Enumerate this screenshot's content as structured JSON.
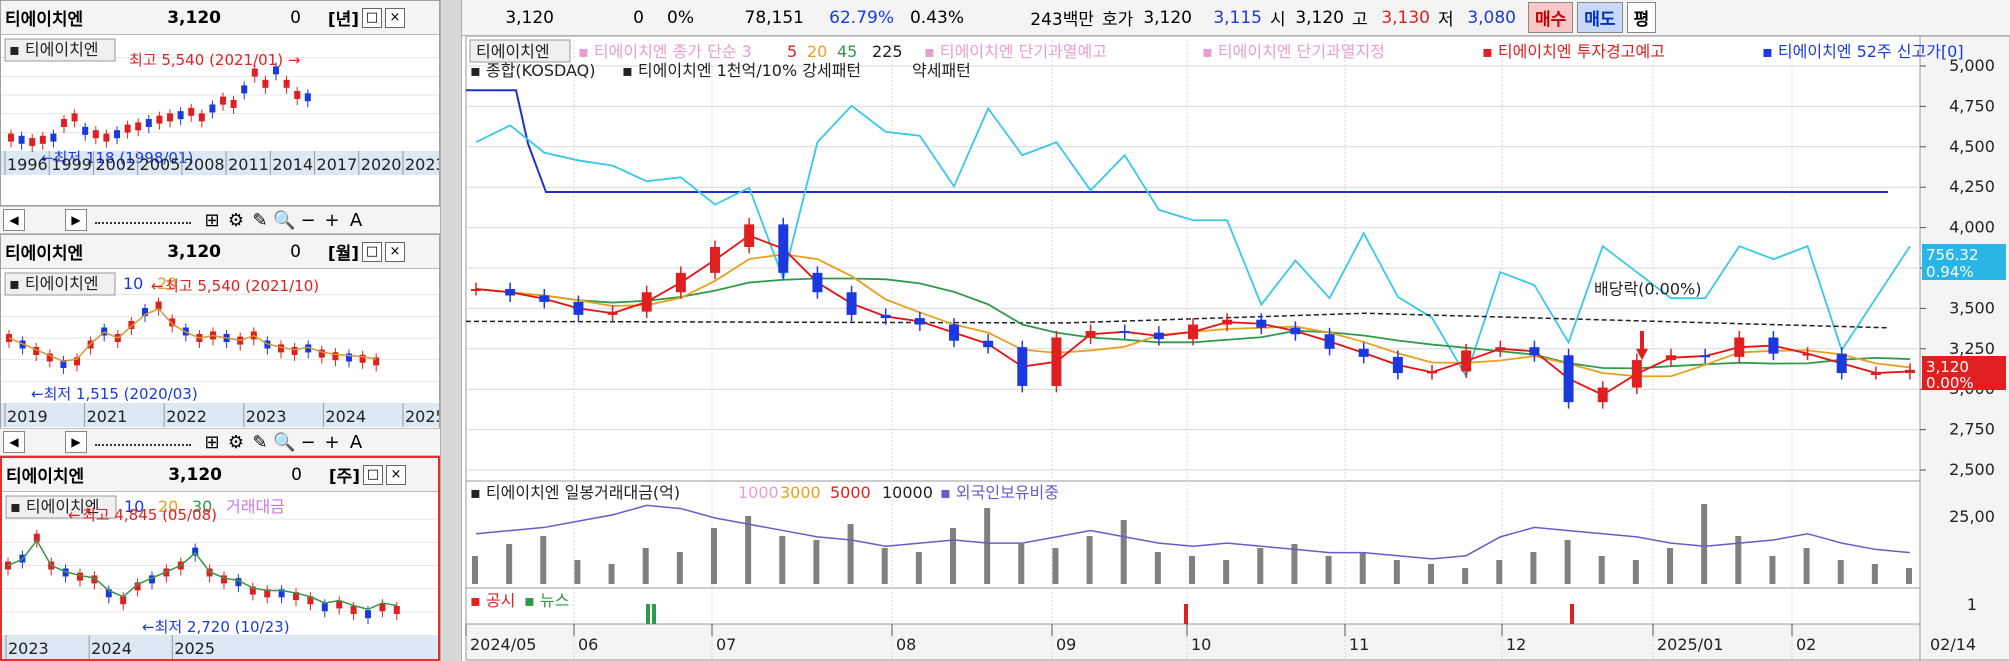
{
  "colors": {
    "up": "#e02020",
    "down": "#1a3ae0",
    "ma5": "#e81010",
    "ma20": "#e8a020",
    "ma45": "#2e9a4a",
    "ma225": "#222222",
    "kosdaq": "#38c8e8",
    "high52": "#2030d0",
    "volume": "#808080",
    "foreign": "#6a5acd",
    "grid": "#d8d8d8"
  },
  "panels": [
    {
      "name": "티에이치엔",
      "price": "3,120",
      "change": "0",
      "period": "[년]",
      "tag": "티에이치엔",
      "high_label": "최고 5,540 (2021/01)",
      "low_label": "최저 118 (1998/01)",
      "x_labels": [
        "1996",
        "1999",
        "2002",
        "2005",
        "2008",
        "2011",
        "2014",
        "2017",
        "2020",
        "2023"
      ],
      "ma_labels": []
    },
    {
      "name": "티에이치엔",
      "price": "3,120",
      "change": "0",
      "period": "[월]",
      "tag": "티에이치엔",
      "high_label": "최고 5,540 (2021/10)",
      "low_label": "최저 1,515 (2020/03)",
      "x_labels": [
        "2019",
        "2021",
        "2022",
        "2023",
        "2024",
        "2025"
      ],
      "ma_labels": [
        "10",
        "20"
      ]
    },
    {
      "name": "티에이치엔",
      "price": "3,120",
      "change": "0",
      "period": "[주]",
      "tag": "티에이치엔",
      "high_label": "최고 4,845 (05/08)",
      "low_label": "최저 2,720 (10/23)",
      "x_labels": [
        "2023",
        "2024",
        "2025"
      ],
      "ma_labels": [
        "10",
        "20",
        "30",
        "거래대금"
      ]
    }
  ],
  "window_buttons": [
    "□",
    "×"
  ],
  "toolbar": {
    "scroll_left": "◀",
    "scroll_right": "▶",
    "icons": [
      "⊞",
      "⚙",
      "✎",
      "🔍",
      "−",
      "+",
      "A"
    ]
  },
  "quote": {
    "price": "3,120",
    "change": "0",
    "change_rate": "0%",
    "volume": "78,151",
    "turnover_rate": "62.79%",
    "rate2": "0.43%",
    "amount": "243백만",
    "hoga_label": "호가",
    "hoga": "3,120",
    "bid": "3,115",
    "open_label": "시",
    "open": "3,120",
    "high_label": "고",
    "high": "3,130",
    "low_label": "저",
    "low": "3,080",
    "buy": "매수",
    "sell": "매도",
    "avg": "평"
  },
  "main_legend": {
    "tag": "티에이치엔",
    "line1": [
      "티에이치엔 종가 단순 3",
      "5",
      "20",
      "45",
      "225",
      "티에이치엔 단기과열예고",
      "티에이치엔 단기과열지정",
      "티에이치엔 투자경고예고",
      "티에이치엔 52주 신고가[0]"
    ],
    "line2": [
      "종합(KOSDAQ)",
      "티에이치엔 1천억/10% 강세패턴",
      "약세패턴"
    ],
    "dividend_label": "배당락(0.00%)"
  },
  "volume_legend": [
    "티에이치엔 일봉거래대금(억)",
    "1000",
    "3000",
    "5000",
    "10000",
    "외국인보유비중"
  ],
  "news_legend": [
    "공시",
    "뉴스"
  ],
  "y_axis_labels": [
    "5,000",
    "4,750",
    "4,500",
    "4,250",
    "4,000",
    "3,750",
    "3,500",
    "3,250",
    "3,000",
    "2,750",
    "2,500"
  ],
  "volume_axis_label": "25,00",
  "news_axis_label": "1",
  "right_tags": {
    "kosdaq_value": "756.32",
    "kosdaq_pct": "0.94%",
    "price": "3,120",
    "price_pct": "0.00%"
  },
  "x_axis_labels": [
    "2024/05",
    "06",
    "07",
    "08",
    "09",
    "10",
    "11",
    "12",
    "2025/01",
    "02"
  ],
  "x_axis_right": "02/14",
  "chart_data": [
    {
      "type": "candlestick",
      "title": "",
      "x_labels": [
        "2024/05",
        "06",
        "07",
        "08",
        "09",
        "10",
        "11",
        "12",
        "2025/01",
        "02"
      ],
      "ylim": [
        2500,
        5000
      ],
      "y_ticks": [
        2500,
        2750,
        3000,
        3250,
        3500,
        3750,
        4000,
        4250,
        4500,
        4750,
        5000
      ],
      "series": [
        {
          "name": "종가",
          "values": [
            3620,
            3580,
            3540,
            3460,
            3480,
            3600,
            3720,
            3880,
            4020,
            3720,
            3600,
            3460,
            3440,
            3400,
            3300,
            3260,
            3020,
            3320,
            3360,
            3350,
            3310,
            3400,
            3430,
            3380,
            3340,
            3250,
            3200,
            3100,
            3110,
            3240,
            3260,
            3210,
            2920,
            3010,
            3180,
            3210,
            3200,
            3320,
            3220,
            3220,
            3100,
            3100,
            3120
          ]
        },
        {
          "name": "KOSDAQ",
          "values": [
            880,
            893,
            872,
            866,
            862,
            850,
            853,
            832,
            845,
            775,
            880,
            908,
            888,
            885,
            846,
            906,
            870,
            880,
            843,
            870,
            828,
            820,
            820,
            755,
            789,
            760,
            810,
            761,
            745,
            700,
            780,
            770,
            726,
            800,
            780,
            760,
            760,
            800,
            790,
            800,
            720,
            760,
            800
          ]
        },
        {
          "name": "외국인보유비중",
          "values": [
            16,
            17,
            18,
            20,
            22,
            25,
            24,
            21,
            19,
            17,
            15,
            14,
            12,
            13,
            14,
            13,
            13,
            15,
            17,
            15,
            13,
            12,
            13,
            12,
            11,
            10,
            10,
            9,
            8,
            9,
            15,
            18,
            17,
            16,
            15,
            13,
            12,
            13,
            14,
            16,
            13,
            11,
            10
          ]
        }
      ],
      "high52_level": 4850,
      "ma_periods": [
        3,
        5,
        20,
        45,
        225
      ]
    }
  ]
}
